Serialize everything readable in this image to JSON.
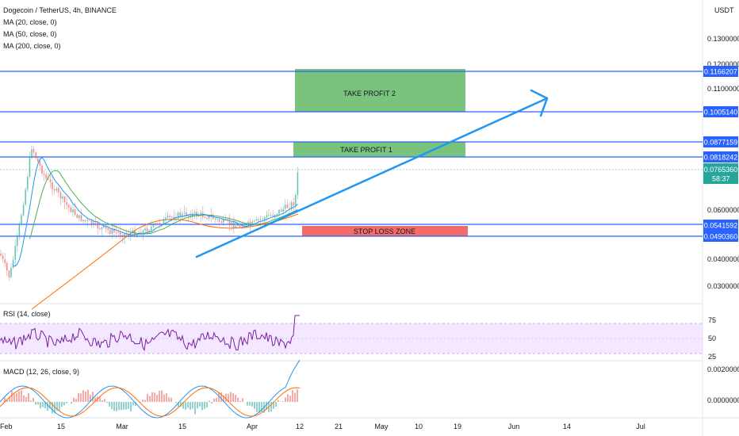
{
  "header": {
    "symbol_line": "Dogecoin / TetherUS, 4h, BINANCE",
    "indicators": [
      "MA (20, close, 0)",
      "MA (50, close, 0)",
      "MA (200, close, 0)"
    ],
    "currency": "USDT"
  },
  "colors": {
    "level_line": "#2962ff",
    "take_profit": "#4caf50",
    "stop_loss": "#f05350",
    "rsi": "#7b1fa2",
    "rsi_band": "#e9d5ff",
    "ma20": "#2196f3",
    "ma50": "#4caf50",
    "ma200": "#ff6d00",
    "candle_up": "#26a69a",
    "candle_down": "#ef5350",
    "current_price": "#26a69a"
  },
  "chart_data": {
    "type": "candlestick",
    "y_scale": "log",
    "price_ticks": [
      "0.1300000",
      "0.1200000",
      "0.1100000",
      "0.0600000",
      "0.0400000",
      "0.0300000"
    ],
    "x_ticks": [
      "Feb",
      "15",
      "Mar",
      "15",
      "Apr",
      "12",
      "21",
      "May",
      "10",
      "19",
      "Jun",
      "14",
      "Jul"
    ],
    "levels": [
      {
        "label": "0.1166207",
        "value": 0.1166207
      },
      {
        "label": "0.1005140",
        "value": 0.100514
      },
      {
        "label": "0.0877159",
        "value": 0.0877159
      },
      {
        "label": "0.0818242",
        "value": 0.0818242
      },
      {
        "label": "0.0541592",
        "value": 0.0541592
      },
      {
        "label": "0.0490360",
        "value": 0.049036
      }
    ],
    "current_price": {
      "label": "0.0765360",
      "countdown": "58:37",
      "value": 0.076536
    },
    "zones": [
      {
        "label": "TAKE PROFIT 2",
        "top": 0.1166207,
        "bottom": 0.100514,
        "kind": "take_profit"
      },
      {
        "label": "TAKE PROFIT 1",
        "top": 0.0877159,
        "bottom": 0.0818242,
        "kind": "take_profit"
      },
      {
        "label": "STOP LOSS ZONE",
        "top": 0.0541592,
        "bottom": 0.049036,
        "kind": "stop_loss"
      }
    ],
    "rsi": {
      "label": "RSI (14, close)",
      "ticks": [
        "75",
        "50",
        "25"
      ],
      "band": [
        30,
        70
      ]
    },
    "macd": {
      "label": "MACD (12, 26, close, 9)",
      "ticks": [
        "0.0020000",
        "0.0000000"
      ]
    }
  }
}
